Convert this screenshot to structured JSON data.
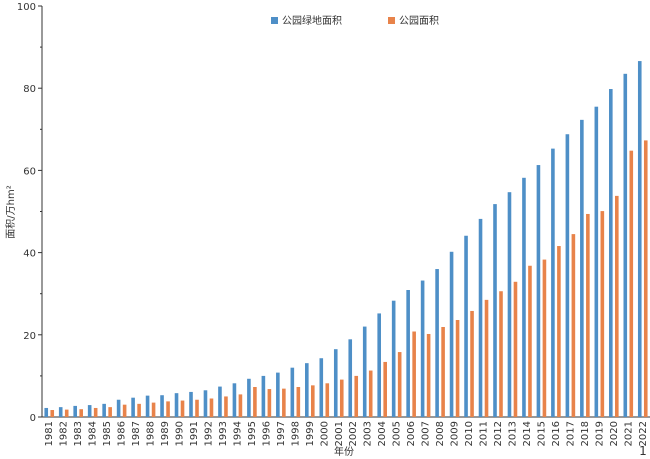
{
  "chart_data": {
    "type": "bar",
    "xlabel": "年份",
    "ylabel": "面积/万hm²",
    "ylim": [
      0,
      100
    ],
    "yticks": [
      0,
      20,
      40,
      60,
      80,
      100
    ],
    "legend_position": "top-center",
    "grid": false,
    "categories": [
      "1981",
      "1982",
      "1983",
      "1984",
      "1985",
      "1986",
      "1987",
      "1988",
      "1989",
      "1990",
      "1991",
      "1992",
      "1993",
      "1994",
      "1995",
      "1996",
      "1997",
      "1998",
      "1999",
      "2000",
      "2001",
      "2002",
      "2003",
      "2004",
      "2005",
      "2006",
      "2007",
      "2008",
      "2009",
      "2010",
      "2011",
      "2012",
      "2013",
      "2014",
      "2015",
      "2016",
      "2017",
      "2018",
      "2019",
      "2020",
      "2021",
      "2022"
    ],
    "series": [
      {
        "name": "公园绿地面积",
        "color": "#4e8fc7",
        "values": [
          2.2,
          2.4,
          2.7,
          2.9,
          3.2,
          4.2,
          4.7,
          5.2,
          5.3,
          5.8,
          6.1,
          6.5,
          7.4,
          8.2,
          9.3,
          10.0,
          10.8,
          12.0,
          13.1,
          14.3,
          16.5,
          18.9,
          22.0,
          25.2,
          28.3,
          30.9,
          33.2,
          36.0,
          40.2,
          44.1,
          48.2,
          51.8,
          54.7,
          58.2,
          61.3,
          65.3,
          68.8,
          72.3,
          75.5,
          79.8,
          83.5,
          86.6
        ]
      },
      {
        "name": "公园面积",
        "color": "#e8834a",
        "values": [
          1.7,
          1.8,
          1.9,
          2.2,
          2.4,
          3.0,
          3.2,
          3.5,
          3.8,
          4.0,
          4.2,
          4.5,
          5.0,
          5.5,
          7.3,
          6.8,
          6.9,
          7.3,
          7.7,
          8.2,
          9.1,
          10.0,
          11.3,
          13.4,
          15.8,
          20.8,
          20.2,
          21.9,
          23.6,
          25.8,
          28.5,
          30.6,
          32.9,
          36.8,
          38.3,
          41.6,
          44.5,
          49.4,
          50.1,
          53.8,
          64.8,
          67.3
        ]
      }
    ],
    "annotations": [
      "1"
    ]
  }
}
